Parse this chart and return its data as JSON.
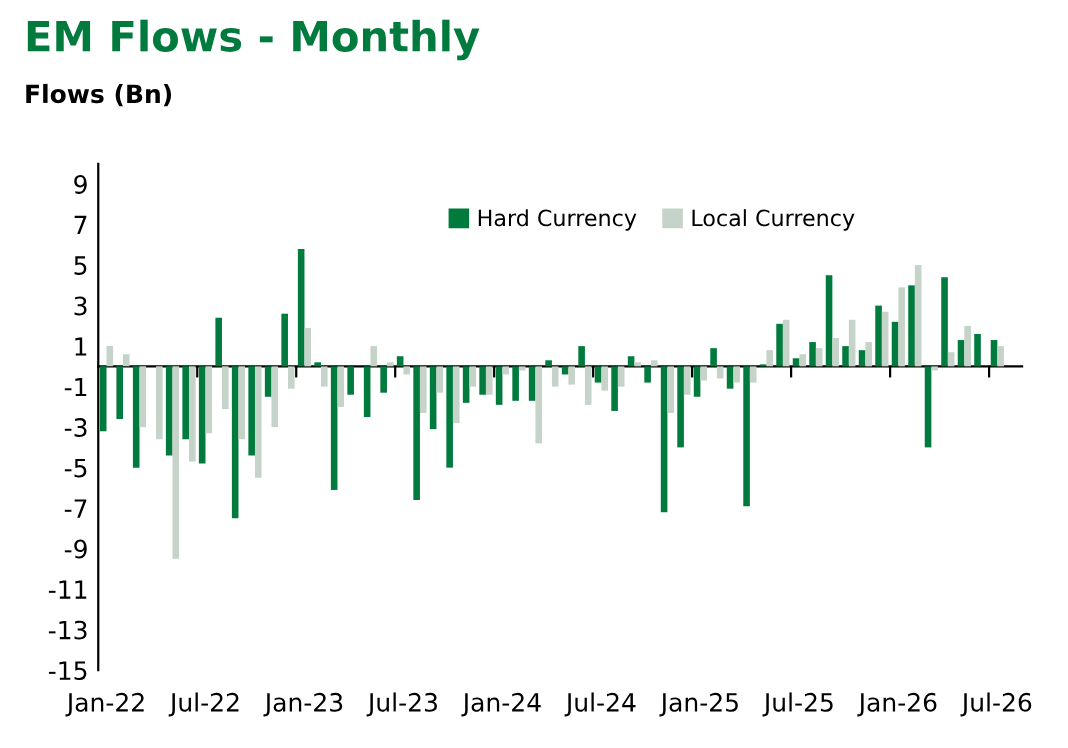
{
  "chart_data": {
    "type": "bar",
    "title": "EM Flows - Monthly",
    "ylabel": "Flows (Bn)",
    "categories": [
      "Jan-22",
      null,
      null,
      null,
      null,
      null,
      "Jul-22",
      null,
      null,
      null,
      null,
      null,
      "Jan-23",
      null,
      null,
      null,
      null,
      null,
      "Jul-23",
      null,
      null,
      null,
      null,
      null,
      "Jan-24",
      null,
      null,
      null,
      null,
      null,
      "Jul-24",
      null,
      null,
      null,
      null,
      null,
      "Jan-25",
      null,
      null,
      null,
      null,
      null,
      "Jul-25",
      null,
      null,
      null,
      null,
      null,
      "Jan-26",
      null,
      null,
      null,
      null,
      null,
      "Jul-26",
      null
    ],
    "series": [
      {
        "name": "Hard Currency",
        "color": "#007a3d",
        "values": [
          -3.2,
          -2.6,
          -5.0,
          null,
          -4.4,
          -3.6,
          -4.8,
          2.4,
          -7.5,
          -4.4,
          -1.5,
          2.6,
          5.8,
          0.2,
          -6.1,
          -1.4,
          -2.5,
          -1.3,
          0.5,
          -6.6,
          -3.1,
          -5.0,
          -1.8,
          -1.4,
          -1.9,
          -1.7,
          -1.7,
          0.3,
          -0.4,
          1.0,
          -0.8,
          -2.2,
          0.5,
          -0.8,
          -7.2,
          -4.0,
          -1.5,
          0.9,
          -1.1,
          -6.9,
          0.1,
          2.1,
          0.4,
          1.2,
          4.5,
          1.0,
          0.8,
          3.0,
          2.2,
          4.0,
          -4.0,
          4.4,
          1.3,
          1.6,
          1.3,
          null
        ]
      },
      {
        "name": "Local Currency",
        "color": "#c5d3c8",
        "values": [
          1.0,
          0.6,
          -3.0,
          -3.6,
          -9.5,
          -4.7,
          -3.3,
          -2.1,
          -3.6,
          -5.5,
          -3.0,
          -1.1,
          1.9,
          -1.0,
          -2.0,
          null,
          1.0,
          0.2,
          -0.4,
          -2.3,
          -1.3,
          -2.8,
          -1.0,
          -1.4,
          -0.4,
          -0.2,
          -3.8,
          -1.0,
          -0.9,
          -1.9,
          -1.2,
          -1.0,
          0.2,
          0.3,
          -2.3,
          -1.4,
          -0.7,
          -0.6,
          -0.8,
          -0.8,
          0.8,
          2.3,
          0.6,
          0.9,
          1.4,
          2.3,
          1.2,
          2.7,
          3.9,
          5.0,
          -0.2,
          0.7,
          2.0,
          null,
          1.0,
          null
        ]
      }
    ],
    "ylim": [
      -15,
      10
    ],
    "yticks": [
      -15,
      -13,
      -11,
      -9,
      -7,
      -5,
      -3,
      -1,
      1,
      3,
      5,
      7,
      9
    ],
    "grid": false,
    "legend": "top"
  }
}
